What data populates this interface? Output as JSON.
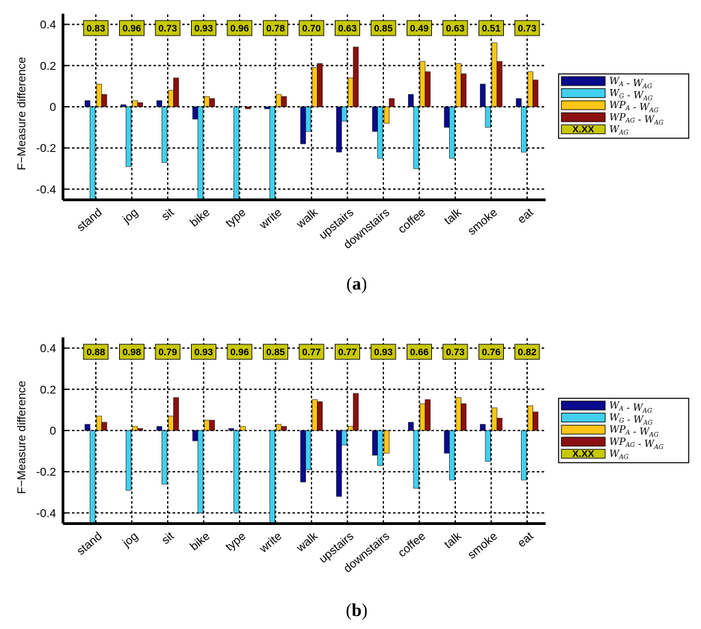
{
  "chart_data": [
    {
      "type": "bar",
      "caption": "a",
      "ylabel": "F−Measure difference",
      "ylim": [
        -0.45,
        0.45
      ],
      "yticks": [
        "0.4",
        "0.2",
        "0",
        "-0.2",
        "-0.4"
      ],
      "ytick_values": [
        0.4,
        0.2,
        0,
        -0.2,
        -0.4
      ],
      "grid": true,
      "legend_position": "right",
      "categories": [
        "stand",
        "jog",
        "sit",
        "bike",
        "type",
        "write",
        "walk",
        "upstairs",
        "downstairs",
        "coffee",
        "talk",
        "smoke",
        "eat"
      ],
      "wag_labels": [
        "0.83",
        "0.96",
        "0.73",
        "0.93",
        "0.96",
        "0.78",
        "0.70",
        "0.63",
        "0.85",
        "0.49",
        "0.63",
        "0.51",
        "0.73"
      ],
      "series": [
        {
          "name": "W_A - W_AG",
          "color": "#0a0a8c",
          "values": [
            0.03,
            0.01,
            0.03,
            -0.06,
            0.0,
            -0.01,
            -0.18,
            -0.22,
            -0.12,
            0.06,
            -0.1,
            0.11,
            0.04
          ]
        },
        {
          "name": "W_G - W_AG",
          "color": "#40d0ee",
          "values": [
            -0.45,
            -0.29,
            -0.27,
            -0.45,
            -0.45,
            -0.45,
            -0.12,
            -0.07,
            -0.25,
            -0.3,
            -0.25,
            -0.1,
            -0.22
          ]
        },
        {
          "name": "WP_A - W_AG",
          "color": "#ffc618",
          "values": [
            0.11,
            0.03,
            0.08,
            0.05,
            0.0,
            0.06,
            0.19,
            0.14,
            -0.08,
            0.22,
            0.21,
            0.31,
            0.17
          ]
        },
        {
          "name": "WP_AG - W_AG",
          "color": "#8c1010",
          "values": [
            0.06,
            0.02,
            0.14,
            0.04,
            -0.01,
            0.05,
            0.21,
            0.29,
            0.04,
            0.17,
            0.16,
            0.22,
            0.13
          ]
        }
      ]
    },
    {
      "type": "bar",
      "caption": "b",
      "ylabel": "F−Measure difference",
      "ylim": [
        -0.45,
        0.45
      ],
      "yticks": [
        "0.4",
        "0.2",
        "0",
        "-0.2",
        "-0.4"
      ],
      "ytick_values": [
        0.4,
        0.2,
        0,
        -0.2,
        -0.4
      ],
      "grid": true,
      "legend_position": "right",
      "categories": [
        "stand",
        "jog",
        "sit",
        "bike",
        "type",
        "write",
        "walk",
        "upstairs",
        "downstairs",
        "coffee",
        "talk",
        "smoke",
        "eat"
      ],
      "wag_labels": [
        "0.88",
        "0.98",
        "0.79",
        "0.93",
        "0.96",
        "0.85",
        "0.77",
        "0.77",
        "0.93",
        "0.66",
        "0.73",
        "0.76",
        "0.82"
      ],
      "series": [
        {
          "name": "W_A - W_AG",
          "color": "#0a0a8c",
          "values": [
            0.03,
            0.0,
            0.02,
            -0.05,
            0.01,
            0.0,
            -0.25,
            -0.32,
            -0.12,
            0.04,
            -0.11,
            0.03,
            0.0
          ]
        },
        {
          "name": "W_G - W_AG",
          "color": "#40d0ee",
          "values": [
            -0.45,
            -0.29,
            -0.26,
            -0.4,
            -0.4,
            -0.45,
            -0.19,
            -0.07,
            -0.17,
            -0.28,
            -0.24,
            -0.15,
            -0.24
          ]
        },
        {
          "name": "WP_A - W_AG",
          "color": "#ffc618",
          "values": [
            0.07,
            0.02,
            0.07,
            0.05,
            0.02,
            0.03,
            0.15,
            0.02,
            -0.11,
            0.13,
            0.16,
            0.11,
            0.12
          ]
        },
        {
          "name": "WP_AG - W_AG",
          "color": "#8c1010",
          "values": [
            0.04,
            0.01,
            0.16,
            0.05,
            0.0,
            0.02,
            0.14,
            0.18,
            0.0,
            0.15,
            0.13,
            0.06,
            0.09
          ]
        }
      ]
    }
  ],
  "legend": {
    "box_color": "#c8c800",
    "box_text": "X.XX",
    "items": [
      {
        "main": "W",
        "sub": "A",
        "sep": " - ",
        "main2": "W",
        "sub2": "AG"
      },
      {
        "main": "W",
        "sub": "G",
        "sep": " - ",
        "main2": "W",
        "sub2": "AG"
      },
      {
        "main": "WP",
        "sub": "A",
        "sep": " - ",
        "main2": "W",
        "sub2": "AG"
      },
      {
        "main": "WP",
        "sub": "AG",
        "sep": " - ",
        "main2": "W",
        "sub2": "AG"
      },
      {
        "main": "W",
        "sub": "AG",
        "sep": "",
        "main2": "",
        "sub2": ""
      }
    ]
  }
}
